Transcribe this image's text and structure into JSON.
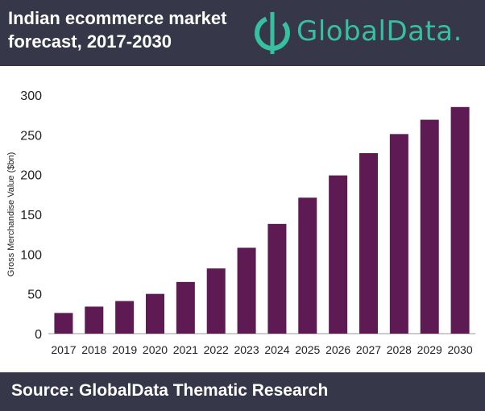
{
  "header": {
    "title": "Indian ecommerce market forecast, 2017-2030",
    "logo_text": "GlobalData."
  },
  "footer": {
    "source": "Source:  GlobalData Thematic Research"
  },
  "colors": {
    "header_bg": "#363748",
    "bar": "#5e1a53",
    "logo": "#36c0a0"
  },
  "chart_data": {
    "type": "bar",
    "title": "Indian ecommerce market forecast, 2017-2030",
    "xlabel": "",
    "ylabel": "Gross Merchandise Value ($bn)",
    "ylim": [
      0,
      300
    ],
    "yticks": [
      0,
      50,
      100,
      150,
      200,
      250,
      300
    ],
    "grid": false,
    "categories": [
      "2017",
      "2018",
      "2019",
      "2020",
      "2021",
      "2022",
      "2023",
      "2024",
      "2025",
      "2026",
      "2027",
      "2028",
      "2029",
      "2030"
    ],
    "values": [
      26,
      34,
      41,
      50,
      65,
      82,
      108,
      138,
      171,
      199,
      227,
      251,
      269,
      285
    ]
  }
}
